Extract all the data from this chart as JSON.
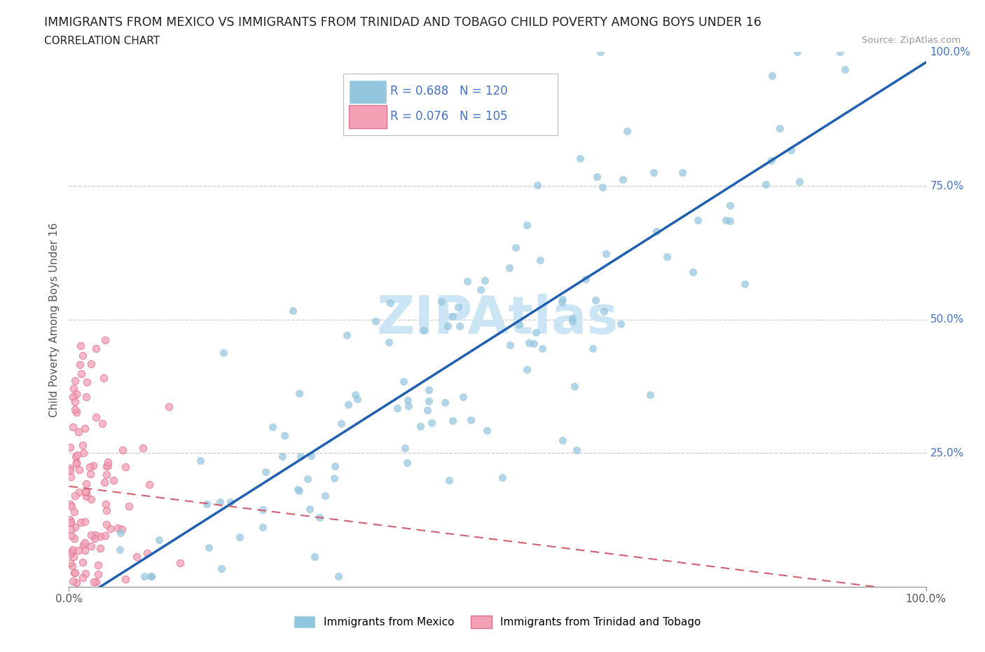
{
  "title": "IMMIGRANTS FROM MEXICO VS IMMIGRANTS FROM TRINIDAD AND TOBAGO CHILD POVERTY AMONG BOYS UNDER 16",
  "subtitle": "CORRELATION CHART",
  "source": "Source: ZipAtlas.com",
  "ylabel": "Child Poverty Among Boys Under 16",
  "mexico_R": 0.688,
  "mexico_N": 120,
  "tt_R": 0.076,
  "tt_N": 105,
  "mexico_color": "#92c5de",
  "mexico_edge": "#92c5de",
  "tt_color": "#f4a0b5",
  "tt_edge": "#e07090",
  "line_mexico_color": "#2060b0",
  "line_tt_color": "#d06070",
  "watermark_color": "#cce5f5",
  "right_tick_color": "#4472c4",
  "grid_color": "#cccccc",
  "axis_color": "#888888",
  "label_color": "#555555",
  "title_color": "#222222"
}
